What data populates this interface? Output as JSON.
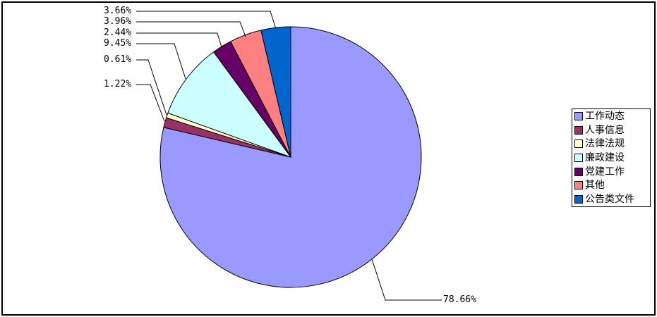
{
  "chart_data": {
    "type": "pie",
    "title": "",
    "slices": [
      {
        "label": "工作动态",
        "value": 78.66,
        "pct_label": "78.66%",
        "color": "#9999FF"
      },
      {
        "label": "人事信息",
        "value": 1.22,
        "pct_label": "1.22%",
        "color": "#993366"
      },
      {
        "label": "法律法规",
        "value": 0.61,
        "pct_label": "0.61%",
        "color": "#FFFFCC"
      },
      {
        "label": "廉政建设",
        "value": 9.45,
        "pct_label": "9.45%",
        "color": "#CCFFFF"
      },
      {
        "label": "党建工作",
        "value": 2.44,
        "pct_label": "2.44%",
        "color": "#660066"
      },
      {
        "label": "其他",
        "value": 3.96,
        "pct_label": "3.96%",
        "color": "#FF8080"
      },
      {
        "label": "公告类文件",
        "value": 3.66,
        "pct_label": "3.66%",
        "color": "#0066CC"
      }
    ],
    "start_angle_deg": 0,
    "direction": "clockwise",
    "legend_position": "right",
    "slice_outline_color": "#000000",
    "leader_line_color": "#000000",
    "background_color": "#FFFFFF",
    "frame_border_color": "#000000"
  }
}
